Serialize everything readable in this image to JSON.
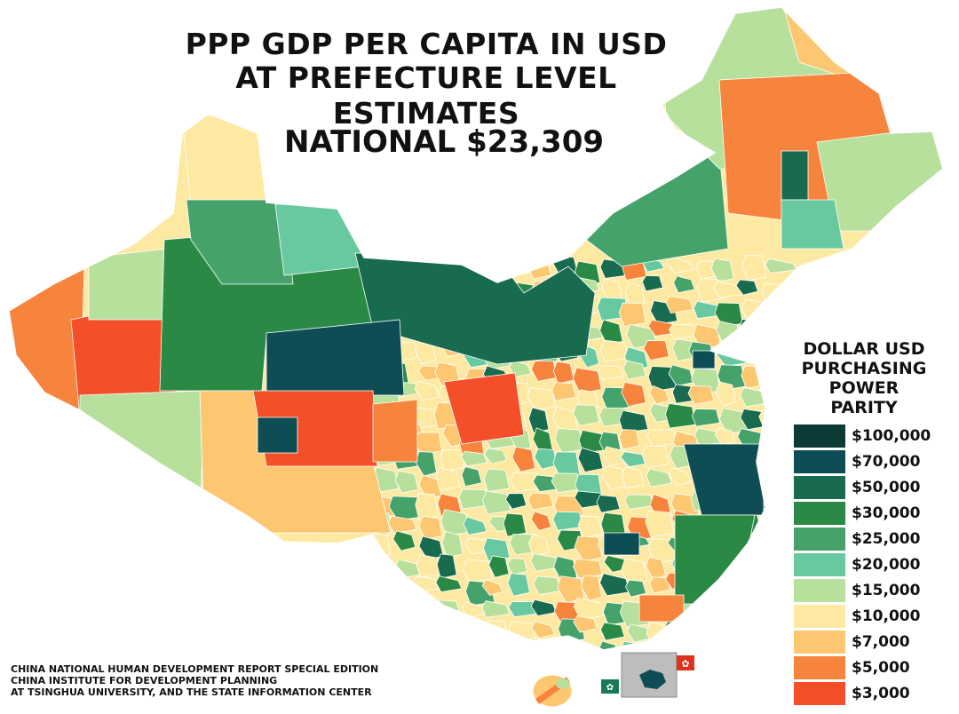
{
  "title": {
    "line1": "PPP GDP PER CAPITA IN USD",
    "line2": "AT PREFECTURE LEVEL ESTIMATES"
  },
  "national": "NATIONAL $23,309",
  "legend": {
    "title": [
      "DOLLAR USD",
      "PURCHASING",
      "POWER PARITY"
    ],
    "items": [
      {
        "label": "$100,000",
        "color": "#0c3a37"
      },
      {
        "label": "$70,000",
        "color": "#0f4d55"
      },
      {
        "label": "$50,000",
        "color": "#186b4f"
      },
      {
        "label": "$30,000",
        "color": "#2a8a45"
      },
      {
        "label": "$25,000",
        "color": "#45a26a"
      },
      {
        "label": "$20,000",
        "color": "#68c9a0"
      },
      {
        "label": "$15,000",
        "color": "#b6e09b"
      },
      {
        "label": "$10,000",
        "color": "#fde9a1"
      },
      {
        "label": "$7,000",
        "color": "#fdc772"
      },
      {
        "label": "$5,000",
        "color": "#f7843c"
      },
      {
        "label": "$3,000",
        "color": "#f54f2a"
      }
    ]
  },
  "source": [
    "CHINA NATIONAL HUMAN DEVELOPMENT REPORT SPECIAL EDITION",
    "CHINA INSTITUTE FOR DEVELOPMENT PLANNING",
    "AT TSINGHUA UNIVERSITY, AND THE STATE INFORMATION CENTER"
  ],
  "insets": [
    "Macau",
    "Hong Kong"
  ]
}
